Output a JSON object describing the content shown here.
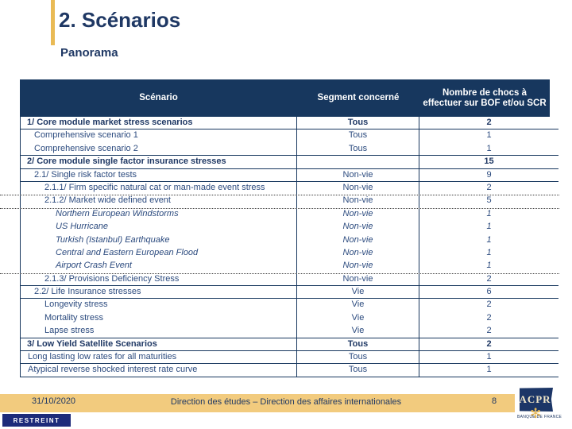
{
  "slide": {
    "title": "2. Scénarios",
    "subtitle": "Panorama"
  },
  "colors": {
    "navy": "#17375E",
    "title_navy": "#1F3864",
    "gold_accent": "#E9BA55",
    "footer_tan": "#F2CB7E",
    "restreint_bg": "#1D2B7A"
  },
  "table": {
    "headers": [
      "Scénario",
      "Segment concerné",
      "Nombre de chocs à effectuer sur BOF et/ou SCR"
    ],
    "rows": [
      {
        "label": "1/ Core module market stress scenarios",
        "segment": "Tous",
        "count": "2",
        "level": "1",
        "bold": true,
        "italic": false,
        "border": "solid"
      },
      {
        "label": "Comprehensive scenario 1",
        "segment": "Tous",
        "count": "1",
        "level": "2",
        "bold": false,
        "italic": false,
        "border": "none"
      },
      {
        "label": "Comprehensive scenario 2",
        "segment": "Tous",
        "count": "1",
        "level": "2",
        "bold": false,
        "italic": false,
        "border": "solid"
      },
      {
        "label": "2/ Core module single factor insurance stresses",
        "segment": "",
        "count": "15",
        "level": "1",
        "bold": true,
        "italic": false,
        "border": "solid"
      },
      {
        "label": "2.1/ Single risk factor tests",
        "segment": "Non-vie",
        "count": "9",
        "level": "2",
        "bold": false,
        "italic": false,
        "border": "solid"
      },
      {
        "label": "2.1.1/ Firm specific natural cat or man-made event stress",
        "segment": "Non-vie",
        "count": "2",
        "level": "3",
        "bold": false,
        "italic": false,
        "border": "dotted"
      },
      {
        "label": "2.1.2/ Market wide defined event",
        "segment": "Non-vie",
        "count": "5",
        "level": "3",
        "bold": false,
        "italic": false,
        "border": "dotted"
      },
      {
        "label": "Northern European Windstorms",
        "segment": "Non-vie",
        "count": "1",
        "level": "4",
        "bold": false,
        "italic": true,
        "border": "none"
      },
      {
        "label": "US Hurricane",
        "segment": "Non-vie",
        "count": "1",
        "level": "4",
        "bold": false,
        "italic": true,
        "border": "none"
      },
      {
        "label": "Turkish (Istanbul) Earthquake",
        "segment": "Non-vie",
        "count": "1",
        "level": "4",
        "bold": false,
        "italic": true,
        "border": "none"
      },
      {
        "label": "Central and Eastern European Flood",
        "segment": "Non-vie",
        "count": "1",
        "level": "4",
        "bold": false,
        "italic": true,
        "border": "none"
      },
      {
        "label": "Airport Crash Event",
        "segment": "Non-vie",
        "count": "1",
        "level": "4",
        "bold": false,
        "italic": true,
        "border": "dotted"
      },
      {
        "label": "2.1.3/ Provisions Deficiency Stress",
        "segment": "Non-vie",
        "count": "2",
        "level": "3",
        "bold": false,
        "italic": false,
        "border": "solid"
      },
      {
        "label": "2.2/ Life Insurance stresses",
        "segment": "Vie",
        "count": "6",
        "level": "2",
        "bold": false,
        "italic": false,
        "border": "solid"
      },
      {
        "label": "Longevity stress",
        "segment": "Vie",
        "count": "2",
        "level": "3",
        "bold": false,
        "italic": false,
        "border": "none"
      },
      {
        "label": "Mortality stress",
        "segment": "Vie",
        "count": "2",
        "level": "3",
        "bold": false,
        "italic": false,
        "border": "none"
      },
      {
        "label": "Lapse stress",
        "segment": "Vie",
        "count": "2",
        "level": "3",
        "bold": false,
        "italic": false,
        "border": "solid"
      },
      {
        "label": "3/ Low Yield Satellite Scenarios",
        "segment": "Tous",
        "count": "2",
        "level": "1",
        "bold": true,
        "italic": false,
        "border": "solid"
      },
      {
        "label": "Long lasting low rates for all maturities",
        "segment": "Tous",
        "count": "1",
        "level": "1b",
        "bold": false,
        "italic": false,
        "border": "solid"
      },
      {
        "label": "Atypical reverse shocked interest rate curve",
        "segment": "Tous",
        "count": "1",
        "level": "1b",
        "bold": false,
        "italic": false,
        "border": "solid"
      }
    ]
  },
  "footer": {
    "date": "31/10/2020",
    "department": "Direction des études – Direction des affaires internationales",
    "page_number": "8",
    "classification": "RESTREINT",
    "logo": {
      "acronym": "ACPR",
      "subtitle": "BANQUE DE FRANCE",
      "sunburst_icon": "sunburst-icon"
    }
  }
}
